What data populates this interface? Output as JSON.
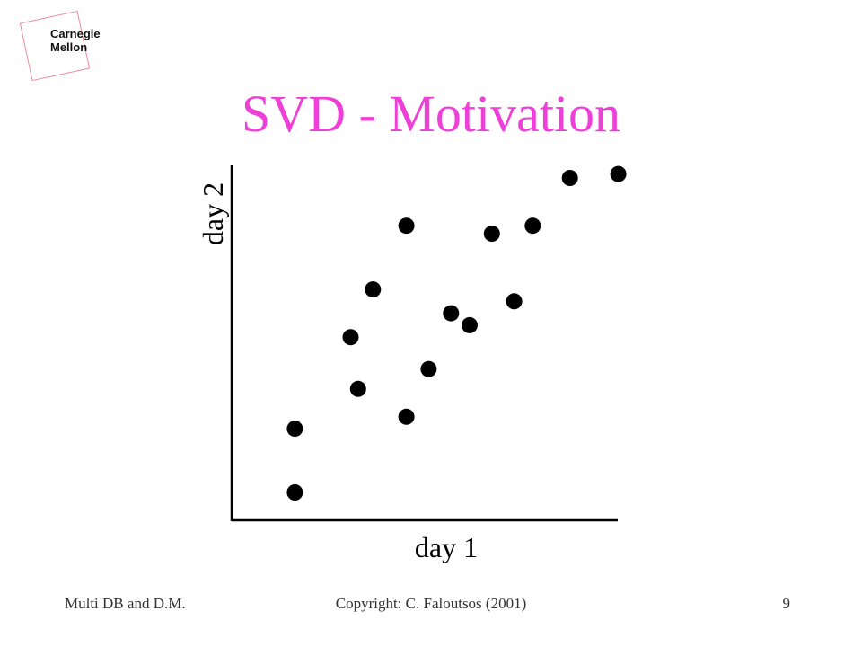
{
  "logo": {
    "line1": "Carnegie",
    "line2": "Mellon",
    "frame_color": "#e98a9a"
  },
  "slide": {
    "title": "SVD - Motivation",
    "title_color": "#ee3fd6"
  },
  "footer": {
    "left": "Multi DB and D.M.",
    "center": "Copyright: C. Faloutsos (2001)",
    "page_number": "9"
  },
  "chart_data": {
    "type": "scatter",
    "title": "",
    "xlabel": "day 1",
    "ylabel": "day 2",
    "xlim": [
      0,
      100
    ],
    "ylim": [
      0,
      100
    ],
    "grid": false,
    "tick_labels": false,
    "point_color": "#000000",
    "x": [
      17,
      17,
      32,
      34,
      38,
      47,
      47,
      53,
      59,
      64,
      70,
      76,
      81,
      91,
      104
    ],
    "y": [
      7,
      23,
      46,
      33,
      58,
      26,
      74,
      38,
      52,
      49,
      72,
      55,
      74,
      86,
      87
    ]
  }
}
